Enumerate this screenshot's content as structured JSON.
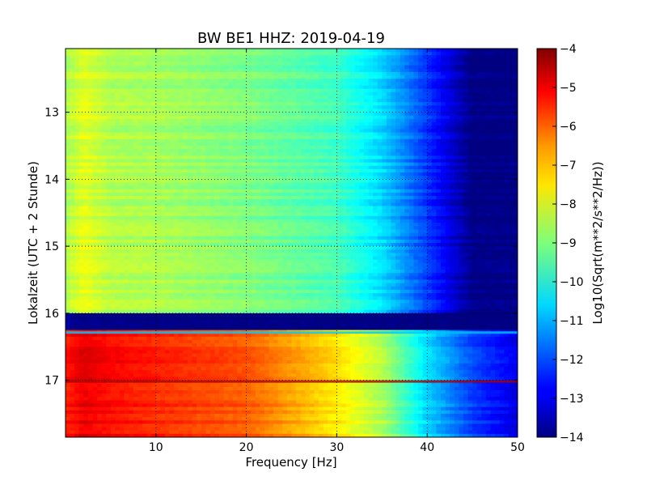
{
  "chart_data": {
    "type": "heatmap",
    "title": "BW BE1 HHZ: 2019-04-19",
    "xlabel": "Frequency [Hz]",
    "ylabel": "Lokalzeit (UTC + 2 Stunde)",
    "xlim": [
      0,
      50
    ],
    "ylim": [
      17.85,
      12.05
    ],
    "x_ticks": [
      10,
      20,
      30,
      40,
      50
    ],
    "y_ticks": [
      13,
      14,
      15,
      16,
      17
    ],
    "grid": true,
    "colormap": "jet",
    "colorbar": {
      "label": "Log10(Sqrt(m**2/s**2/Hz))",
      "range": [
        -14,
        -4
      ],
      "ticks": [
        -4,
        -5,
        -6,
        -7,
        -8,
        -9,
        -10,
        -11,
        -12,
        -13,
        -14
      ]
    },
    "segments": [
      {
        "t_start": 12.05,
        "t_end": 16.0,
        "profile": [
          [
            0,
            -8.6
          ],
          [
            2,
            -8.0
          ],
          [
            5,
            -8.5
          ],
          [
            10,
            -8.6
          ],
          [
            20,
            -9.0
          ],
          [
            30,
            -9.6
          ],
          [
            35,
            -10.6
          ],
          [
            40,
            -12.2
          ],
          [
            44,
            -13.6
          ],
          [
            45,
            -14
          ],
          [
            50,
            -14
          ]
        ]
      },
      {
        "t_start": 16.0,
        "t_end": 16.25,
        "profile": [
          [
            0,
            -13.5
          ],
          [
            1,
            -13.9
          ],
          [
            50,
            -14
          ]
        ]
      },
      {
        "t_start": 16.25,
        "t_end": 17.85,
        "profile": [
          [
            0,
            -5.5
          ],
          [
            2,
            -5.0
          ],
          [
            5,
            -5.3
          ],
          [
            10,
            -5.6
          ],
          [
            20,
            -6.1
          ],
          [
            30,
            -7.5
          ],
          [
            35,
            -8.5
          ],
          [
            40,
            -10.6
          ],
          [
            45,
            -12.1
          ],
          [
            50,
            -13.0
          ]
        ]
      }
    ],
    "band_lines": [
      {
        "t": 16.27,
        "value": -10.8
      },
      {
        "t": 17.0,
        "value": -4.4
      }
    ]
  }
}
